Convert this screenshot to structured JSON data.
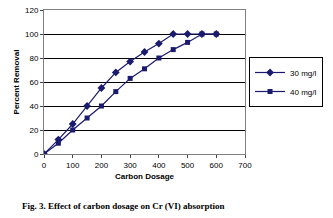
{
  "chart_data": {
    "type": "line",
    "title": "Fig. 3. Effect of carbon dosage on Cr (VI) absorption",
    "x_label": "Carbon Dosage",
    "y_label": "Percent Removal",
    "x": [
      0,
      50,
      100,
      150,
      200,
      250,
      300,
      350,
      400,
      450,
      500,
      550,
      600
    ],
    "series": [
      {
        "name": "30 mg/l",
        "color": "#1a1a6e",
        "marker": "diamond",
        "line_style": "solid",
        "values": [
          0,
          12,
          25,
          40,
          55,
          68,
          77,
          85,
          92,
          100,
          100,
          100,
          100
        ]
      },
      {
        "name": "40 mg/l",
        "color": "#1a1a6e",
        "marker": "square",
        "line_style": "solid",
        "values": [
          0,
          9,
          20,
          30,
          40,
          52,
          63,
          71,
          80,
          87,
          93,
          100,
          100
        ]
      }
    ],
    "xlim": [
      0,
      700
    ],
    "xticks": [
      0,
      100,
      200,
      300,
      400,
      500,
      600,
      700
    ],
    "ylim": [
      0,
      120
    ],
    "yticks": [
      0,
      20,
      40,
      60,
      80,
      100,
      120
    ],
    "grid": true,
    "legend": "right"
  }
}
